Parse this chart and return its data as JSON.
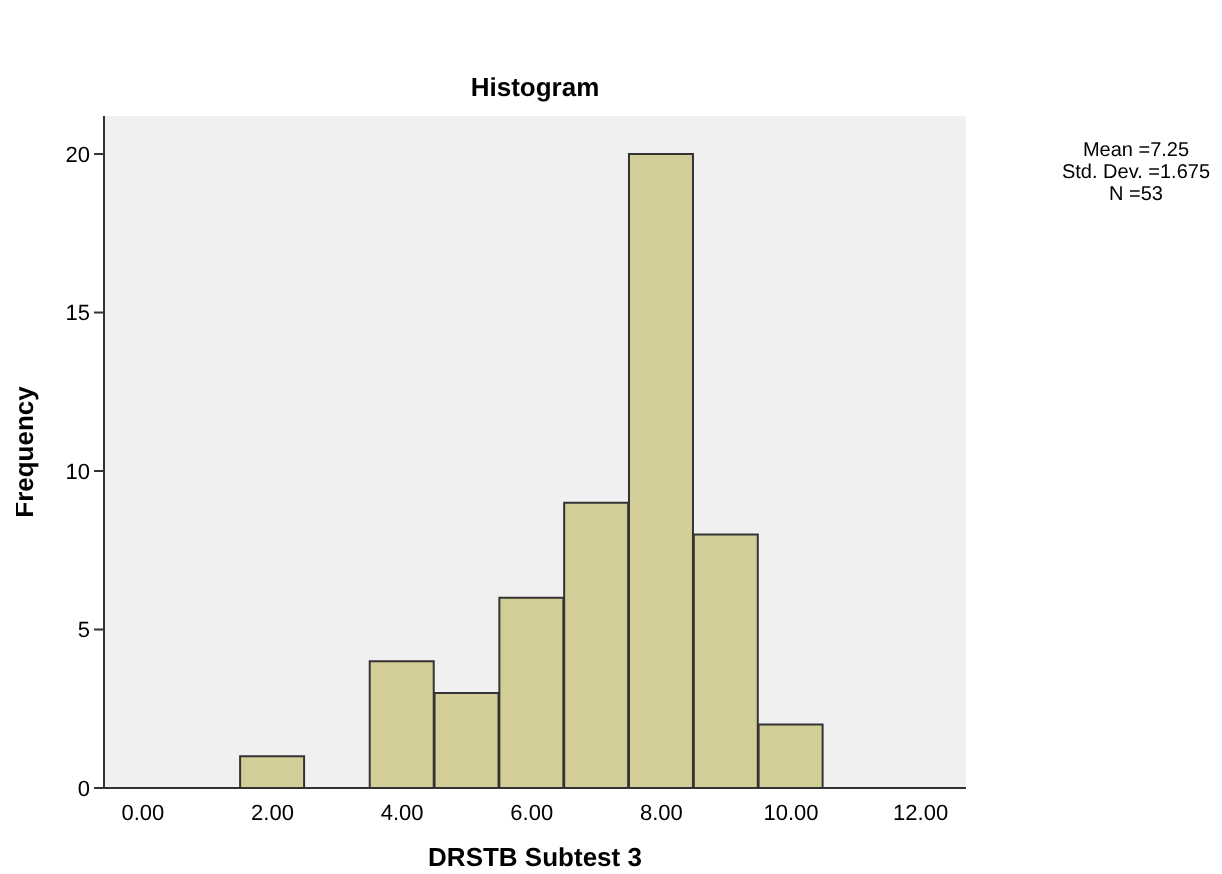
{
  "chart_data": {
    "type": "histogram",
    "title": "Histogram",
    "xlabel": "DRSTB Subtest 3",
    "ylabel": "Frequency",
    "bins": [
      1.5,
      2.5,
      3.5,
      4.5,
      5.5,
      6.5,
      7.5,
      8.5,
      9.5,
      10.5
    ],
    "values": [
      1,
      0,
      4,
      3,
      6,
      9,
      20,
      8,
      2
    ],
    "color": "#d3ce97",
    "xlim": [
      -0.6,
      12.7
    ],
    "xticks": [
      {
        "value": 0,
        "label": "0.00"
      },
      {
        "value": 2,
        "label": "2.00"
      },
      {
        "value": 4,
        "label": "4.00"
      },
      {
        "value": 6,
        "label": "6.00"
      },
      {
        "value": 8,
        "label": "8.00"
      },
      {
        "value": 10,
        "label": "10.00"
      },
      {
        "value": 12,
        "label": "12.00"
      }
    ],
    "ylim": [
      0,
      21.2
    ],
    "yticks": [
      0,
      5,
      10,
      15,
      20
    ],
    "grid": false,
    "annotations": [
      "Mean =7.25",
      "Std. Dev. =1.675",
      "N =53"
    ]
  }
}
